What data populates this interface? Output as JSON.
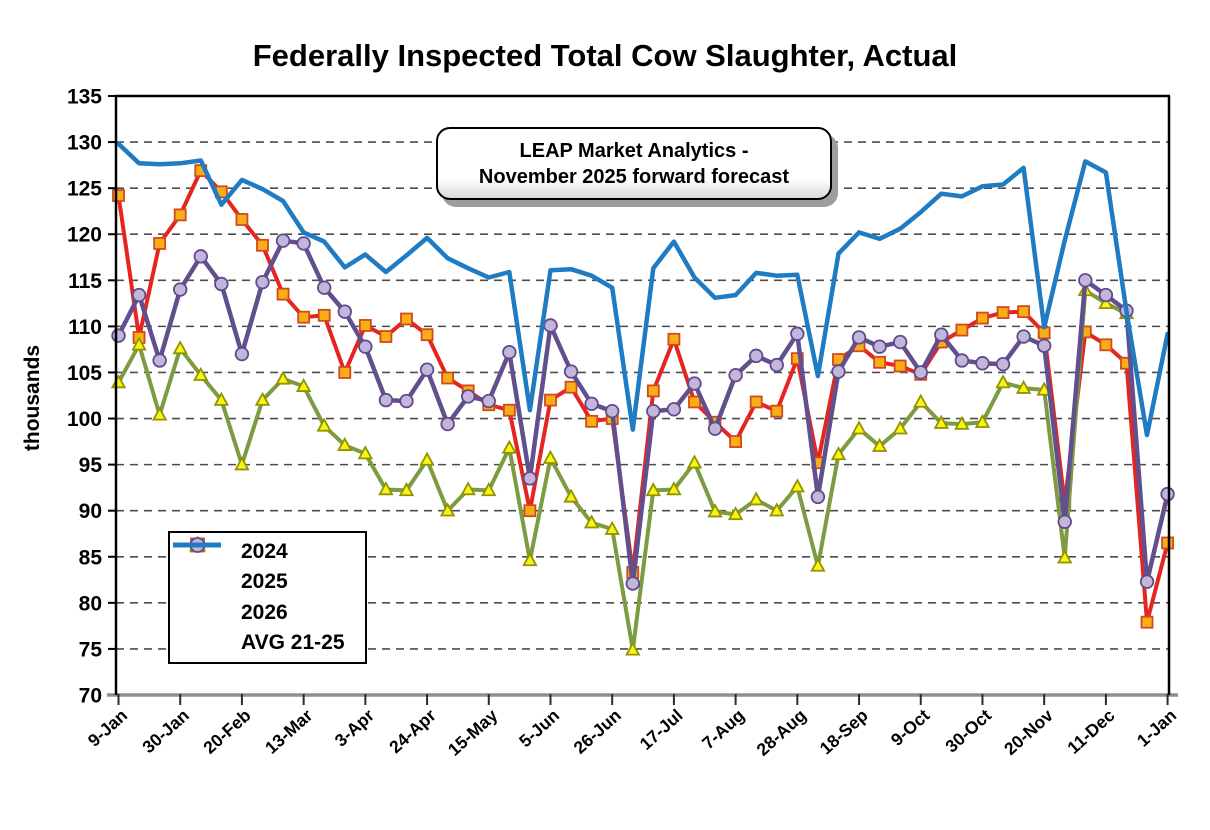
{
  "chart": {
    "annotation": {
      "line1": "LEAP Market Analytics -",
      "line2": "November 2025 forward forecast"
    }
  },
  "chart_data": {
    "type": "line",
    "title": "Federally Inspected Total Cow Slaughter, Actual",
    "xlabel": "",
    "ylabel": "thousands",
    "ylim": [
      70,
      135
    ],
    "y_tick_step": 5,
    "x_tick_every": 3,
    "grid": "horizontal-dashed",
    "legend_position": "inside-bottom-left",
    "colors": {
      "gridline": "#4d4d4d",
      "frame": "#000000",
      "x_axis_line": "#8f8f8f",
      "background": "#ffffff"
    },
    "categories": [
      "9-Jan",
      "16-Jan",
      "23-Jan",
      "30-Jan",
      "6-Feb",
      "13-Feb",
      "20-Feb",
      "27-Feb",
      "6-Mar",
      "13-Mar",
      "20-Mar",
      "27-Mar",
      "3-Apr",
      "10-Apr",
      "17-Apr",
      "24-Apr",
      "1-May",
      "8-May",
      "15-May",
      "22-May",
      "29-May",
      "5-Jun",
      "12-Jun",
      "19-Jun",
      "26-Jun",
      "3-Jul",
      "10-Jul",
      "17-Jul",
      "24-Jul",
      "31-Jul",
      "7-Aug",
      "14-Aug",
      "21-Aug",
      "28-Aug",
      "4-Sep",
      "11-Sep",
      "18-Sep",
      "25-Sep",
      "2-Oct",
      "9-Oct",
      "16-Oct",
      "23-Oct",
      "30-Oct",
      "6-Nov",
      "13-Nov",
      "20-Nov",
      "27-Nov",
      "4-Dec",
      "11-Dec",
      "18-Dec",
      "25-Dec",
      "1-Jan"
    ],
    "visible_x_tick_labels": [
      "9-Jan",
      "30-Jan",
      "20-Feb",
      "13-Mar",
      "3-Apr",
      "24-Apr",
      "15-May",
      "5-Jun",
      "26-Jun",
      "17-Jul",
      "7-Aug",
      "28-Aug",
      "18-Sep",
      "9-Oct",
      "30-Oct",
      "20-Nov",
      "11-Dec",
      "1-Jan"
    ],
    "series": [
      {
        "name": "2024",
        "color": "#e52620",
        "line_width": 4,
        "marker": "square",
        "marker_fill": "#FBAD18",
        "marker_stroke": "#cf4b1d",
        "values": [
          124.2,
          108.8,
          119.0,
          122.1,
          126.9,
          124.6,
          121.6,
          118.8,
          113.5,
          111.0,
          111.2,
          105.0,
          110.1,
          108.9,
          110.8,
          109.1,
          104.4,
          103.0,
          101.5,
          100.9,
          90.0,
          102.0,
          103.4,
          99.7,
          100.0,
          83.3,
          103.0,
          108.6,
          101.8,
          99.6,
          97.5,
          101.8,
          100.8,
          106.5,
          95.2,
          106.4,
          107.9,
          106.1,
          105.7,
          104.8,
          108.3,
          109.6,
          110.9,
          111.5,
          111.6,
          109.3,
          90.8,
          109.4,
          108.0,
          106.0,
          77.9,
          86.5
        ]
      },
      {
        "name": "2025",
        "color": "#7D9B40",
        "line_width": 4,
        "marker": "triangle",
        "marker_fill": "#FCF316",
        "marker_stroke": "#8f9400",
        "values": [
          103.9,
          108.0,
          100.4,
          107.6,
          104.7,
          102.0,
          95.0,
          102.0,
          104.3,
          103.5,
          99.2,
          97.1,
          96.2,
          92.3,
          92.2,
          95.5,
          90.0,
          92.3,
          92.2,
          96.8,
          84.6,
          95.7,
          91.5,
          88.7,
          88.0,
          74.9,
          92.2,
          92.3,
          95.2,
          89.9,
          89.6,
          91.2,
          90.0,
          92.6,
          84.0,
          96.1,
          98.9,
          97.0,
          98.9,
          101.8,
          99.5,
          99.4,
          99.6,
          103.9,
          103.3,
          103.1,
          84.9,
          113.9,
          112.5,
          111.4,
          null,
          null
        ]
      },
      {
        "name": "2026",
        "color": "#61508D",
        "line_width": 4.5,
        "marker": "circle",
        "marker_fill": "#C4B6DA",
        "marker_stroke": "#5F4B8B",
        "values": [
          109.0,
          113.4,
          106.3,
          114.0,
          117.6,
          114.6,
          107.0,
          114.8,
          119.3,
          119.0,
          114.2,
          111.6,
          107.8,
          102.0,
          101.9,
          105.3,
          99.4,
          102.4,
          101.9,
          107.2,
          93.5,
          110.1,
          105.1,
          101.6,
          100.8,
          82.1,
          100.8,
          101.0,
          103.8,
          98.9,
          104.7,
          106.8,
          105.8,
          109.2,
          91.5,
          105.1,
          108.8,
          107.8,
          108.3,
          105.0,
          109.1,
          106.3,
          106.0,
          105.9,
          108.9,
          107.9,
          88.8,
          115.0,
          113.4,
          111.7,
          82.3,
          91.8
        ]
      },
      {
        "name": "AVG 21-25",
        "color": "#1F7BC2",
        "line_width": 4.5,
        "marker": "none",
        "marker_fill": "",
        "marker_stroke": "",
        "values": [
          129.8,
          127.7,
          127.6,
          127.7,
          128.0,
          123.2,
          125.9,
          124.9,
          123.6,
          120.2,
          119.2,
          116.4,
          117.8,
          115.9,
          117.7,
          119.6,
          117.4,
          116.3,
          115.3,
          115.9,
          100.9,
          116.1,
          116.2,
          115.5,
          114.2,
          98.8,
          116.3,
          119.2,
          115.3,
          113.1,
          113.4,
          115.8,
          115.5,
          115.6,
          104.6,
          117.9,
          120.2,
          119.5,
          120.6,
          122.4,
          124.4,
          124.1,
          125.2,
          125.4,
          127.2,
          109.9,
          119.3,
          127.9,
          126.7,
          111.6,
          98.2,
          109.2
        ]
      }
    ]
  }
}
